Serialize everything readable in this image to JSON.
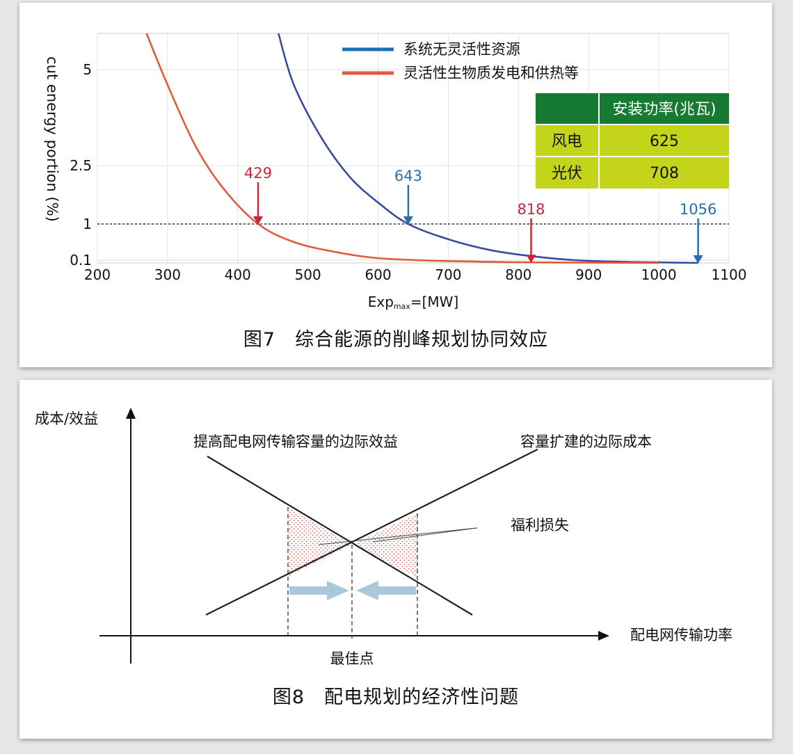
{
  "figure7": {
    "caption": "图7　综合能源的削峰规划协同效应",
    "chart_data": {
      "type": "line",
      "xlabel_main": "Exp",
      "xlabel_sub": "max",
      "xlabel_tail": "=[MW]",
      "ylabel": "cut energy portion (%)",
      "x_ticks": [
        "200",
        "300",
        "400",
        "500",
        "600",
        "700",
        "800",
        "900",
        "1000",
        "1100"
      ],
      "y_ticks": [
        {
          "label": "5",
          "value": 5
        },
        {
          "label": "2.5",
          "value": 2.5
        },
        {
          "label": "1",
          "value": 1
        },
        {
          "label": "0.1",
          "value": 0.1
        }
      ],
      "xlim": [
        200,
        1100
      ],
      "threshold_y": 1,
      "series": [
        {
          "name": "系统无灵活性资源",
          "color": "#3a4aa0",
          "legend_color": "#1f6fb5",
          "points": [
            [
              458,
              6
            ],
            [
              480,
              4.6
            ],
            [
              520,
              3.2
            ],
            [
              560,
              2.2
            ],
            [
              600,
              1.55
            ],
            [
              643,
              1.0
            ],
            [
              700,
              0.62
            ],
            [
              760,
              0.35
            ],
            [
              818,
              0.2
            ],
            [
              880,
              0.1
            ],
            [
              950,
              0.04
            ],
            [
              1000,
              0.02
            ],
            [
              1056,
              0
            ]
          ]
        },
        {
          "name": "灵活性生物质发电和供热等",
          "color": "#e05a3c",
          "legend_color": "#e05a3c",
          "points": [
            [
              270,
              6
            ],
            [
              300,
              4.6
            ],
            [
              340,
              3.0
            ],
            [
              380,
              1.9
            ],
            [
              429,
              1.0
            ],
            [
              480,
              0.55
            ],
            [
              540,
              0.3
            ],
            [
              600,
              0.15
            ],
            [
              680,
              0.08
            ],
            [
              760,
              0.04
            ],
            [
              818,
              0.02
            ],
            [
              900,
              0.01
            ],
            [
              1000,
              0
            ]
          ]
        }
      ],
      "annotations": [
        {
          "label": "429",
          "x": 429,
          "y": 1,
          "color": "#c8253c"
        },
        {
          "label": "643",
          "x": 643,
          "y": 1,
          "color": "#2a6fa8"
        },
        {
          "label": "818",
          "x": 818,
          "y": 0.02,
          "color": "#c8253c"
        },
        {
          "label": "1056",
          "x": 1056,
          "y": 0,
          "color": "#2a6fa8"
        }
      ],
      "table": {
        "header": [
          "",
          "安装功率(兆瓦)"
        ],
        "rows": [
          [
            "风电",
            "625"
          ],
          [
            "光伏",
            "708"
          ]
        ],
        "header_color": "#167a33",
        "body_color": "#c3d41a"
      }
    }
  },
  "figure8": {
    "caption": "图8　配电规划的经济性问题",
    "y_axis_label": "成本/效益",
    "x_axis_label": "配电网传输功率",
    "line_benefit_label": "提高配电网传输容量的边际效益",
    "line_cost_label": "容量扩建的边际成本",
    "welfare_loss_label": "福利损失",
    "optimum_label": "最佳点",
    "hatch_color": "#d9534f",
    "arrow_color": "#a9c9da"
  }
}
